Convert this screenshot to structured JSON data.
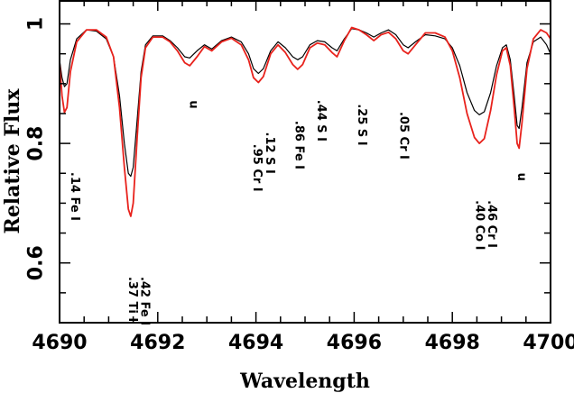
{
  "chart_data": {
    "type": "line",
    "xlabel": "Wavelength",
    "ylabel": "Relative Flux",
    "xlim": [
      4690,
      4700
    ],
    "ylim": [
      0.5,
      1.04
    ],
    "x_ticks": [
      {
        "value": 4690,
        "label": "4690"
      },
      {
        "value": 4692,
        "label": "4692"
      },
      {
        "value": 4694,
        "label": "4694"
      },
      {
        "value": 4696,
        "label": "4696"
      },
      {
        "value": 4698,
        "label": "4698"
      },
      {
        "value": 4700,
        "label": "4700"
      }
    ],
    "y_ticks": [
      {
        "value": 0.6,
        "label": "0.6"
      },
      {
        "value": 0.8,
        "label": "0.8"
      },
      {
        "value": 1.0,
        "label": "1"
      }
    ],
    "grid": false,
    "series": [
      {
        "color": "#000000",
        "points": [
          [
            4690.0,
            0.94
          ],
          [
            4690.05,
            0.91
          ],
          [
            4690.1,
            0.895
          ],
          [
            4690.15,
            0.9
          ],
          [
            4690.22,
            0.94
          ],
          [
            4690.35,
            0.975
          ],
          [
            4690.55,
            0.99
          ],
          [
            4690.75,
            0.988
          ],
          [
            4690.95,
            0.975
          ],
          [
            4691.1,
            0.945
          ],
          [
            4691.22,
            0.88
          ],
          [
            4691.32,
            0.8
          ],
          [
            4691.4,
            0.75
          ],
          [
            4691.45,
            0.745
          ],
          [
            4691.5,
            0.76
          ],
          [
            4691.58,
            0.84
          ],
          [
            4691.66,
            0.92
          ],
          [
            4691.75,
            0.965
          ],
          [
            4691.9,
            0.98
          ],
          [
            4692.1,
            0.98
          ],
          [
            4692.25,
            0.972
          ],
          [
            4692.4,
            0.96
          ],
          [
            4692.55,
            0.945
          ],
          [
            4692.65,
            0.943
          ],
          [
            4692.8,
            0.955
          ],
          [
            4692.95,
            0.965
          ],
          [
            4693.1,
            0.958
          ],
          [
            4693.3,
            0.972
          ],
          [
            4693.5,
            0.978
          ],
          [
            4693.7,
            0.97
          ],
          [
            4693.85,
            0.95
          ],
          [
            4693.95,
            0.925
          ],
          [
            4694.05,
            0.917
          ],
          [
            4694.15,
            0.925
          ],
          [
            4694.3,
            0.955
          ],
          [
            4694.45,
            0.97
          ],
          [
            4694.6,
            0.96
          ],
          [
            4694.75,
            0.945
          ],
          [
            4694.85,
            0.94
          ],
          [
            4694.95,
            0.945
          ],
          [
            4695.1,
            0.965
          ],
          [
            4695.25,
            0.972
          ],
          [
            4695.4,
            0.97
          ],
          [
            4695.55,
            0.96
          ],
          [
            4695.65,
            0.955
          ],
          [
            4695.8,
            0.975
          ],
          [
            4695.95,
            0.992
          ],
          [
            4696.1,
            0.99
          ],
          [
            4696.25,
            0.985
          ],
          [
            4696.4,
            0.978
          ],
          [
            4696.55,
            0.985
          ],
          [
            4696.7,
            0.99
          ],
          [
            4696.85,
            0.982
          ],
          [
            4697.0,
            0.965
          ],
          [
            4697.1,
            0.96
          ],
          [
            4697.25,
            0.97
          ],
          [
            4697.45,
            0.982
          ],
          [
            4697.65,
            0.98
          ],
          [
            4697.85,
            0.975
          ],
          [
            4698.0,
            0.96
          ],
          [
            4698.15,
            0.93
          ],
          [
            4698.3,
            0.885
          ],
          [
            4698.45,
            0.855
          ],
          [
            4698.55,
            0.848
          ],
          [
            4698.65,
            0.853
          ],
          [
            4698.78,
            0.885
          ],
          [
            4698.9,
            0.93
          ],
          [
            4699.02,
            0.96
          ],
          [
            4699.1,
            0.965
          ],
          [
            4699.18,
            0.94
          ],
          [
            4699.26,
            0.88
          ],
          [
            4699.32,
            0.83
          ],
          [
            4699.36,
            0.825
          ],
          [
            4699.42,
            0.86
          ],
          [
            4699.52,
            0.935
          ],
          [
            4699.65,
            0.97
          ],
          [
            4699.8,
            0.978
          ],
          [
            4699.92,
            0.965
          ],
          [
            4700.0,
            0.95
          ]
        ]
      },
      {
        "color": "#e8221c",
        "points": [
          [
            4690.0,
            0.935
          ],
          [
            4690.05,
            0.88
          ],
          [
            4690.1,
            0.852
          ],
          [
            4690.15,
            0.86
          ],
          [
            4690.22,
            0.92
          ],
          [
            4690.35,
            0.97
          ],
          [
            4690.55,
            0.99
          ],
          [
            4690.75,
            0.99
          ],
          [
            4690.95,
            0.978
          ],
          [
            4691.1,
            0.945
          ],
          [
            4691.22,
            0.86
          ],
          [
            4691.32,
            0.76
          ],
          [
            4691.4,
            0.69
          ],
          [
            4691.45,
            0.678
          ],
          [
            4691.5,
            0.7
          ],
          [
            4691.58,
            0.81
          ],
          [
            4691.66,
            0.91
          ],
          [
            4691.75,
            0.96
          ],
          [
            4691.9,
            0.978
          ],
          [
            4692.1,
            0.978
          ],
          [
            4692.25,
            0.97
          ],
          [
            4692.4,
            0.955
          ],
          [
            4692.55,
            0.935
          ],
          [
            4692.65,
            0.93
          ],
          [
            4692.8,
            0.945
          ],
          [
            4692.95,
            0.962
          ],
          [
            4693.1,
            0.955
          ],
          [
            4693.3,
            0.97
          ],
          [
            4693.5,
            0.976
          ],
          [
            4693.7,
            0.965
          ],
          [
            4693.85,
            0.94
          ],
          [
            4693.95,
            0.91
          ],
          [
            4694.05,
            0.902
          ],
          [
            4694.15,
            0.912
          ],
          [
            4694.3,
            0.95
          ],
          [
            4694.45,
            0.965
          ],
          [
            4694.6,
            0.952
          ],
          [
            4694.75,
            0.932
          ],
          [
            4694.85,
            0.924
          ],
          [
            4694.95,
            0.932
          ],
          [
            4695.1,
            0.96
          ],
          [
            4695.25,
            0.968
          ],
          [
            4695.4,
            0.965
          ],
          [
            4695.55,
            0.952
          ],
          [
            4695.65,
            0.945
          ],
          [
            4695.8,
            0.972
          ],
          [
            4695.95,
            0.994
          ],
          [
            4696.1,
            0.99
          ],
          [
            4696.25,
            0.982
          ],
          [
            4696.4,
            0.972
          ],
          [
            4696.55,
            0.982
          ],
          [
            4696.7,
            0.986
          ],
          [
            4696.85,
            0.975
          ],
          [
            4697.0,
            0.955
          ],
          [
            4697.1,
            0.95
          ],
          [
            4697.25,
            0.965
          ],
          [
            4697.45,
            0.985
          ],
          [
            4697.65,
            0.985
          ],
          [
            4697.85,
            0.978
          ],
          [
            4698.0,
            0.955
          ],
          [
            4698.15,
            0.91
          ],
          [
            4698.3,
            0.85
          ],
          [
            4698.45,
            0.81
          ],
          [
            4698.55,
            0.8
          ],
          [
            4698.65,
            0.808
          ],
          [
            4698.78,
            0.855
          ],
          [
            4698.9,
            0.915
          ],
          [
            4699.02,
            0.955
          ],
          [
            4699.1,
            0.96
          ],
          [
            4699.18,
            0.93
          ],
          [
            4699.26,
            0.86
          ],
          [
            4699.32,
            0.8
          ],
          [
            4699.36,
            0.792
          ],
          [
            4699.42,
            0.835
          ],
          [
            4699.52,
            0.925
          ],
          [
            4699.65,
            0.975
          ],
          [
            4699.8,
            0.99
          ],
          [
            4699.92,
            0.985
          ],
          [
            4700.0,
            0.975
          ]
        ]
      }
    ],
    "annotations": [
      {
        "id": "ann-14-fe-i",
        "text": ".14 Fe I",
        "x": 4690.3,
        "y": 0.752
      },
      {
        "id": "ann-42-fe-i",
        "text": ".42 Fe I",
        "x": 4691.73,
        "y": 0.577
      },
      {
        "id": "ann-37-ti-i",
        "text": ".37 Ti I",
        "x": 4691.48,
        "y": 0.577
      },
      {
        "id": "ann-u-1",
        "text": "u",
        "x": 4692.72,
        "y": 0.872
      },
      {
        "id": "ann-12-s-i",
        "text": ".12 S I",
        "x": 4694.27,
        "y": 0.819
      },
      {
        "id": "ann-95-cr-i",
        "text": ".95 Cr I",
        "x": 4694.02,
        "y": 0.799
      },
      {
        "id": "ann-86-fe-i",
        "text": ".86 Fe I",
        "x": 4694.87,
        "y": 0.838
      },
      {
        "id": "ann-44-s-i",
        "text": ".44 S I",
        "x": 4695.32,
        "y": 0.873
      },
      {
        "id": "ann-25-s-i",
        "text": ".25 S I",
        "x": 4696.15,
        "y": 0.866
      },
      {
        "id": "ann-05-cr-i",
        "text": ".05 Cr I",
        "x": 4697.0,
        "y": 0.853
      },
      {
        "id": "ann-46-cr-i",
        "text": ".46 Cr I",
        "x": 4698.8,
        "y": 0.705
      },
      {
        "id": "ann-40-co-i",
        "text": ".40 Co I",
        "x": 4698.55,
        "y": 0.705
      },
      {
        "id": "ann-u-2",
        "text": "u",
        "x": 4699.4,
        "y": 0.751
      }
    ]
  }
}
